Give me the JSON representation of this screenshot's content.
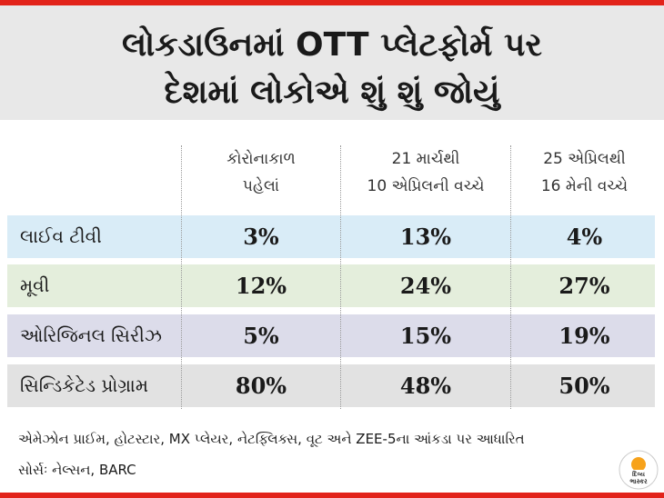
{
  "colors": {
    "accent_red": "#e2231a",
    "header_bg": "#e8e8e8",
    "row_colors": [
      "#d9ecf7",
      "#e4eedc",
      "#dcdcea",
      "#e2e2e2"
    ]
  },
  "header": {
    "line1": "લોકડાઉનમાં OTT પ્લેટફોર્મ પર",
    "line2": "દેશમાં લોકોએ શું શું જોયું"
  },
  "columns": [
    {
      "line1": "કોરોનાકાળ",
      "line2": "પહેલાં"
    },
    {
      "line1": "21 માર્ચથી",
      "line2": "10 એપ્રિલની વચ્ચે"
    },
    {
      "line1": "25 એપ્રિલથી",
      "line2": "16 મેની વચ્ચે"
    }
  ],
  "rows": [
    {
      "label": "લાઈવ ટીવી",
      "values": [
        "3%",
        "13%",
        "4%"
      ]
    },
    {
      "label": "મૂવી",
      "values": [
        "12%",
        "24%",
        "27%"
      ]
    },
    {
      "label": "ઓરિજિનલ સિરીઝ",
      "values": [
        "5%",
        "15%",
        "19%"
      ]
    },
    {
      "label": "સિન્ડિકેટેડ પ્રોગ્રામ",
      "values": [
        "80%",
        "48%",
        "50%"
      ]
    }
  ],
  "footnotes": {
    "line1": "એમેઝોન પ્રાઈમ, હોટસ્ટાર, MX પ્લેયર, નેટફ્લિક્સ, વૂટ અને ZEE-5ના આંકડા પર આધારિત",
    "line2": "સોર્સઃ નેલ્સન, BARC"
  },
  "logo": {
    "name": "divya-bhaskar-logo",
    "text_top": "દિવ્ય",
    "text_bottom": "ભાસ્કર"
  },
  "chart_data": {
    "type": "table",
    "title": "લોકડાઉનમાં OTT પ્લેટફોર્મ પર દેશમાં લોકોએ શું શું જોયું",
    "columns": [
      "કોરોનાકાળ પહેલાં",
      "21 માર્ચથી 10 એપ્રિલની વચ્ચે",
      "25 એપ્રિલથી 16 મેની વચ્ચે"
    ],
    "categories": [
      "લાઈવ ટીવી",
      "મૂવી",
      "ઓરિજિનલ સિરીઝ",
      "સિન્ડિકેટેડ પ્રોગ્રામ"
    ],
    "series": [
      {
        "name": "કોરોનાકાળ પહેલાં",
        "values": [
          3,
          12,
          5,
          80
        ]
      },
      {
        "name": "21 માર્ચથી 10 એપ્રિલની વચ્ચે",
        "values": [
          13,
          24,
          15,
          48
        ]
      },
      {
        "name": "25 એપ્રિલથી 16 મેની વચ્ચે",
        "values": [
          4,
          27,
          19,
          50
        ]
      }
    ],
    "unit": "%"
  }
}
